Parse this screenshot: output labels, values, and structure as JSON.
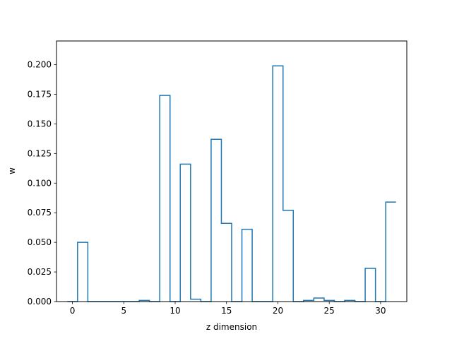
{
  "chart_data": {
    "type": "step",
    "title": "",
    "xlabel": "z dimension",
    "ylabel": "w",
    "xlim": [
      -1.55,
      32.55
    ],
    "ylim": [
      0.0,
      0.22
    ],
    "x_ticks": [
      0,
      5,
      10,
      15,
      20,
      25,
      30
    ],
    "y_ticks": [
      0.0,
      0.025,
      0.05,
      0.075,
      0.1,
      0.125,
      0.15,
      0.175,
      0.2
    ],
    "y_tick_labels": [
      "0.000",
      "0.025",
      "0.050",
      "0.075",
      "0.100",
      "0.125",
      "0.150",
      "0.175",
      "0.200"
    ],
    "grid": false,
    "line_color": "#1f77b4",
    "x": [
      0,
      1,
      2,
      3,
      4,
      5,
      6,
      7,
      8,
      9,
      10,
      11,
      12,
      13,
      14,
      15,
      16,
      17,
      18,
      19,
      20,
      21,
      22,
      23,
      24,
      25,
      26,
      27,
      28,
      29,
      30,
      31
    ],
    "values": [
      0.0,
      0.05,
      0.0,
      0.0,
      0.0,
      0.0,
      0.0,
      0.001,
      0.0,
      0.174,
      0.0,
      0.116,
      0.002,
      0.0,
      0.137,
      0.066,
      0.0,
      0.061,
      0.0,
      0.0,
      0.199,
      0.077,
      0.0,
      0.001,
      0.003,
      0.001,
      0.0,
      0.001,
      0.0,
      0.028,
      0.0,
      0.084
    ]
  }
}
